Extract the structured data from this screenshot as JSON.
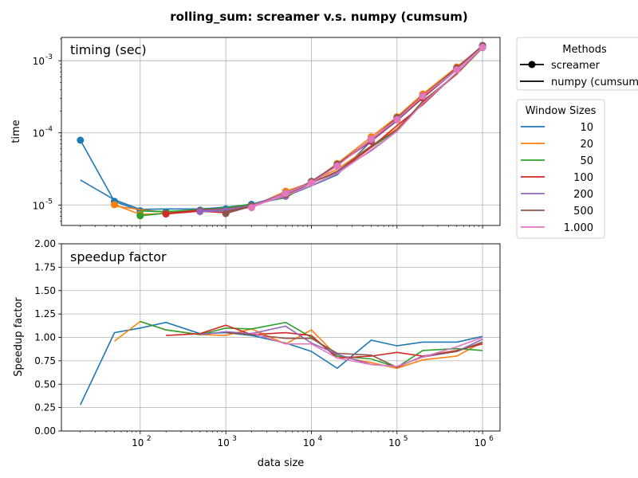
{
  "figure_title": "rolling_sum:  screamer v.s. numpy (cumsum)",
  "legend_methods": {
    "title": "Methods",
    "entries": [
      "screamer",
      "numpy (cumsum)"
    ]
  },
  "legend_windows": {
    "title": "Window Sizes",
    "entries": [
      "10",
      "20",
      "50",
      "100",
      "200",
      "500",
      "1.000"
    ]
  },
  "colors": {
    "w10": "#1f77b4",
    "w20": "#ff7f0e",
    "w50": "#2ca02c",
    "w100": "#d62728",
    "w200": "#9467bd",
    "w500": "#8c564b",
    "w1000": "#e377c2",
    "grid": "#b0b0b0"
  },
  "chart_data": [
    {
      "type": "line",
      "panel_label": "timing (sec)",
      "xlabel": "",
      "ylabel": "time",
      "xscale": "log",
      "yscale": "log",
      "xlim": [
        12,
        1600000
      ],
      "ylim": [
        5.2e-06,
        0.0021
      ],
      "grid": true,
      "x_ticks": [
        100,
        1000,
        10000,
        100000,
        1000000
      ],
      "y_ticks": [
        1e-05,
        0.0001,
        0.001
      ],
      "y_tick_labels": [
        [
          "10",
          "-5"
        ],
        [
          "10",
          "-4"
        ],
        [
          "10",
          "-3"
        ]
      ],
      "series": [
        {
          "name": "10",
          "color_key": "w10",
          "x": [
            20,
            50,
            100,
            200,
            500,
            1000,
            2000,
            5000,
            10000,
            20000,
            50000,
            100000,
            200000,
            500000,
            1000000
          ],
          "screamer": [
            7.9e-05,
            1.12e-05,
            8.3e-06,
            8e-06,
            8.5e-06,
            8.8e-06,
            1.02e-05,
            1.4e-05,
            2.1e-05,
            3.6e-05,
            7.9e-05,
            0.00016,
            0.00033,
            0.00079,
            0.00158
          ],
          "numpy": [
            2.22e-05,
            1.18e-05,
            8.7e-06,
            8.8e-06,
            8.8e-06,
            9.3e-06,
            1.02e-05,
            1.32e-05,
            1.84e-05,
            2.62e-05,
            7.68e-05,
            0.000147,
            0.000304,
            0.00075,
            0.00158
          ]
        },
        {
          "name": "20",
          "color_key": "w20",
          "x": [
            50,
            100,
            200,
            500,
            1000,
            2000,
            5000,
            10000,
            20000,
            50000,
            100000,
            200000,
            500000,
            1000000
          ],
          "screamer": [
            1.01e-05,
            7.4e-06,
            7.6e-06,
            8.3e-06,
            8.2e-06,
            9.5e-06,
            1.55e-05,
            2.05e-05,
            3.75e-05,
            8.8e-05,
            0.000167,
            0.000345,
            0.00082,
            0.00159
          ],
          "numpy": [
            9.7e-06,
            8.6e-06,
            7.9e-06,
            8.5e-06,
            8.5e-06,
            9.6e-06,
            1.4e-05,
            2.12e-05,
            3.12e-05,
            6.6e-05,
            0.000115,
            0.000262,
            0.000648,
            0.0015
          ]
        },
        {
          "name": "50",
          "color_key": "w50",
          "x": [
            100,
            200,
            500,
            1000,
            2000,
            5000,
            10000,
            20000,
            50000,
            100000,
            200000,
            500000,
            1000000
          ],
          "screamer": [
            7.1e-06,
            7.7e-06,
            8.3e-06,
            8.3e-06,
            9.7e-06,
            1.46e-05,
            2.04e-05,
            3.52e-05,
            8.2e-05,
            0.000158,
            0.00032,
            0.00078,
            0.00152
          ],
          "numpy": [
            8.3e-06,
            8.1e-06,
            8.6e-06,
            9.1e-06,
            1.03e-05,
            1.26e-05,
            2.05e-05,
            2.8e-05,
            6.3e-05,
            0.000108,
            0.000275,
            0.00066,
            0.0015
          ]
        },
        {
          "name": "100",
          "color_key": "w100",
          "x": [
            200,
            500,
            1000,
            2000,
            5000,
            10000,
            20000,
            50000,
            100000,
            200000,
            500000,
            1000000
          ],
          "screamer": [
            7.5e-06,
            8.2e-06,
            7.8e-06,
            9.5e-06,
            1.38e-05,
            2.12e-05,
            3.62e-05,
            7.6e-05,
            0.000152,
            0.000305,
            0.00077,
            0.0016
          ],
          "numpy": [
            7.6e-06,
            8.5e-06,
            8.8e-06,
            9.8e-06,
            1.45e-05,
            2.07e-05,
            2.83e-05,
            6.3e-05,
            0.000126,
            0.000245,
            0.00068,
            0.00152
          ]
        },
        {
          "name": "200",
          "color_key": "w200",
          "x": [
            500,
            1000,
            2000,
            5000,
            10000,
            20000,
            50000,
            100000,
            200000,
            500000,
            1000000
          ],
          "screamer": [
            8.1e-06,
            8.2e-06,
            9.7e-06,
            1.32e-05,
            2.04e-05,
            3.56e-05,
            7.9e-05,
            0.000155,
            0.000325,
            0.00076,
            0.00158
          ],
          "numpy": [
            8.3e-06,
            8.7e-06,
            9.8e-06,
            1.47e-05,
            2.07e-05,
            2.85e-05,
            5.65e-05,
            0.000105,
            0.00026,
            0.00066,
            0.00156
          ]
        },
        {
          "name": "500",
          "color_key": "w500",
          "x": [
            1000,
            2000,
            5000,
            10000,
            20000,
            50000,
            100000,
            200000,
            500000,
            1000000
          ],
          "screamer": [
            7.6e-06,
            9.6e-06,
            1.4e-05,
            2.12e-05,
            3.66e-05,
            8.1e-05,
            0.000162,
            0.000325,
            0.00079,
            0.00163
          ],
          "numpy": [
            8.1e-06,
            9.7e-06,
            1.39e-05,
            2.02e-05,
            2.92e-05,
            6.6e-05,
            0.00011,
            0.00027,
            0.00066,
            0.00155
          ]
        },
        {
          "name": "1.000",
          "color_key": "w1000",
          "x": [
            2000,
            5000,
            10000,
            20000,
            50000,
            100000,
            200000,
            500000,
            1000000
          ],
          "screamer": [
            9.2e-06,
            1.45e-05,
            2.02e-05,
            3.47e-05,
            8.2e-05,
            0.000153,
            0.000322,
            0.00075,
            0.00153
          ],
          "numpy": [
            9.7e-06,
            1.35e-05,
            1.88e-05,
            2.72e-05,
            5.8e-05,
            0.000105,
            0.000255,
            0.00069,
            0.00153
          ]
        }
      ]
    },
    {
      "type": "line",
      "panel_label": "speedup factor",
      "xlabel": "data size",
      "ylabel": "Speedup factor",
      "xscale": "log",
      "yscale": "linear",
      "xlim": [
        12,
        1600000
      ],
      "ylim": [
        0,
        2
      ],
      "grid": true,
      "x_ticks": [
        100,
        1000,
        10000,
        100000,
        1000000
      ],
      "x_tick_labels": [
        [
          "10",
          "2"
        ],
        [
          "10",
          "3"
        ],
        [
          "10",
          "4"
        ],
        [
          "10",
          "5"
        ],
        [
          "10",
          "6"
        ]
      ],
      "y_ticks": [
        0,
        0.25,
        0.5,
        0.75,
        1.0,
        1.25,
        1.5,
        1.75,
        2.0
      ],
      "y_tick_labels": [
        "0.00",
        "0.25",
        "0.50",
        "0.75",
        "1.00",
        "1.25",
        "1.50",
        "1.75",
        "2.00"
      ],
      "series": [
        {
          "name": "10",
          "color_key": "w10",
          "x": [
            20,
            50,
            100,
            200,
            500,
            1000,
            2000,
            5000,
            10000,
            20000,
            50000,
            100000,
            200000,
            500000,
            1000000
          ],
          "values": [
            0.28,
            1.05,
            1.1,
            1.16,
            1.04,
            1.05,
            1.02,
            0.94,
            0.85,
            0.67,
            0.97,
            0.91,
            0.95,
            0.95,
            1.01
          ]
        },
        {
          "name": "20",
          "color_key": "w20",
          "x": [
            50,
            100,
            200,
            500,
            1000,
            2000,
            5000,
            10000,
            20000,
            50000,
            100000,
            200000,
            500000,
            1000000
          ],
          "values": [
            0.96,
            1.17,
            1.08,
            1.03,
            1.02,
            1.09,
            0.93,
            1.08,
            0.8,
            0.73,
            0.67,
            0.76,
            0.8,
            0.95
          ]
        },
        {
          "name": "50",
          "color_key": "w50",
          "x": [
            100,
            200,
            500,
            1000,
            2000,
            5000,
            10000,
            20000,
            50000,
            100000,
            200000,
            500000,
            1000000
          ],
          "values": [
            1.17,
            1.08,
            1.03,
            1.1,
            1.09,
            1.16,
            1.0,
            0.8,
            0.77,
            0.68,
            0.86,
            0.88,
            0.86
          ]
        },
        {
          "name": "100",
          "color_key": "w100",
          "x": [
            200,
            500,
            1000,
            2000,
            5000,
            10000,
            20000,
            50000,
            100000,
            200000,
            500000,
            1000000
          ],
          "values": [
            1.02,
            1.04,
            1.13,
            1.03,
            1.05,
            1.02,
            0.78,
            0.8,
            0.84,
            0.8,
            0.86,
            0.93
          ]
        },
        {
          "name": "200",
          "color_key": "w200",
          "x": [
            500,
            1000,
            2000,
            5000,
            10000,
            20000,
            50000,
            100000,
            200000,
            500000,
            1000000
          ],
          "values": [
            1.03,
            1.06,
            1.04,
            1.12,
            0.94,
            0.82,
            0.71,
            0.69,
            0.79,
            0.85,
            0.98
          ]
        },
        {
          "name": "500",
          "color_key": "w500",
          "x": [
            1000,
            2000,
            5000,
            10000,
            20000,
            50000,
            100000,
            200000,
            500000,
            1000000
          ],
          "values": [
            1.05,
            1.03,
            0.99,
            0.99,
            0.83,
            0.81,
            0.68,
            0.8,
            0.85,
            0.95
          ]
        },
        {
          "name": "1.000",
          "color_key": "w1000",
          "x": [
            2000,
            5000,
            10000,
            20000,
            50000,
            100000,
            200000,
            500000,
            1000000
          ],
          "values": [
            1.05,
            0.93,
            0.93,
            0.78,
            0.71,
            0.69,
            0.79,
            0.9,
            1.0
          ]
        }
      ]
    }
  ]
}
